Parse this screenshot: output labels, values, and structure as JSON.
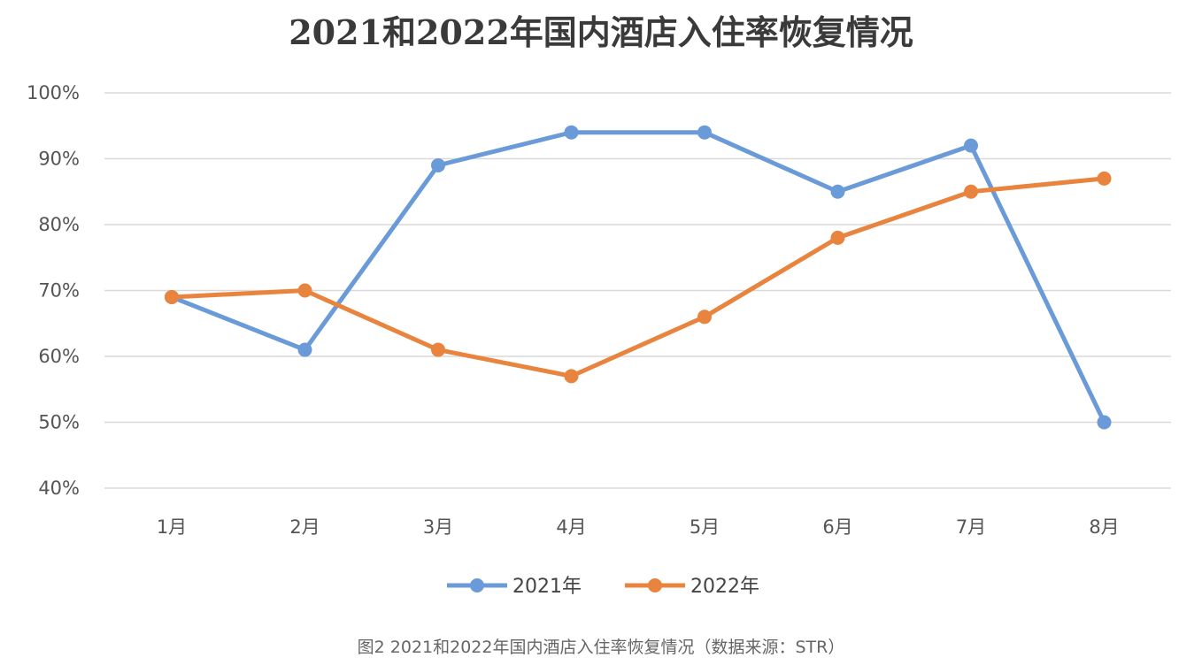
{
  "chart_data": {
    "type": "line",
    "title": "2021和2022年国内酒店入住率恢复情况",
    "categories": [
      "1月",
      "2月",
      "3月",
      "4月",
      "5月",
      "6月",
      "7月",
      "8月"
    ],
    "y_ticks": [
      "40%",
      "50%",
      "60%",
      "70%",
      "80%",
      "90%",
      "100%"
    ],
    "ylim": [
      40,
      100
    ],
    "y_unit": "%",
    "grid": true,
    "legend_position": "bottom",
    "series": [
      {
        "name": "2021年",
        "color": "#6a9bd8",
        "values": [
          69,
          61,
          89,
          94,
          94,
          85,
          92,
          50
        ]
      },
      {
        "name": "2022年",
        "color": "#e8843e",
        "values": [
          69,
          70,
          61,
          57,
          66,
          78,
          85,
          87
        ]
      }
    ]
  },
  "caption": "图2 2021和2022年国内酒店入住率恢复情况（数据来源：STR）"
}
